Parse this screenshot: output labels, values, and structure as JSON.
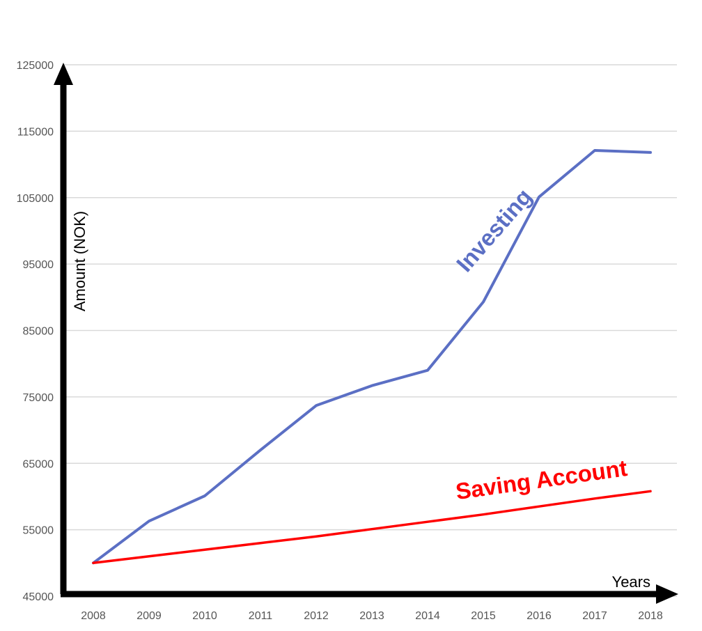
{
  "chart_data": {
    "type": "line",
    "title": "",
    "xlabel": "Years",
    "ylabel": "Amount (NOK)",
    "categories": [
      "2008",
      "2009",
      "2010",
      "2011",
      "2012",
      "2013",
      "2014",
      "2015",
      "2016",
      "2017",
      "2018"
    ],
    "yticks": [
      "45000",
      "55000",
      "65000",
      "75000",
      "85000",
      "95000",
      "105000",
      "115000",
      "125000"
    ],
    "ylim": [
      45000,
      125000
    ],
    "grid": true,
    "legend": "none",
    "series": [
      {
        "name": "Investing",
        "color": "#5b6fc4",
        "values": [
          50000,
          56300,
          60100,
          67000,
          73700,
          76700,
          79000,
          89300,
          105100,
          112100,
          111800
        ]
      },
      {
        "name": "Saving Account",
        "color": "#ff0000",
        "values": [
          50000,
          51000,
          52000,
          53000,
          54000,
          55100,
          56200,
          57300,
          58500,
          59700,
          60800
        ]
      }
    ]
  }
}
